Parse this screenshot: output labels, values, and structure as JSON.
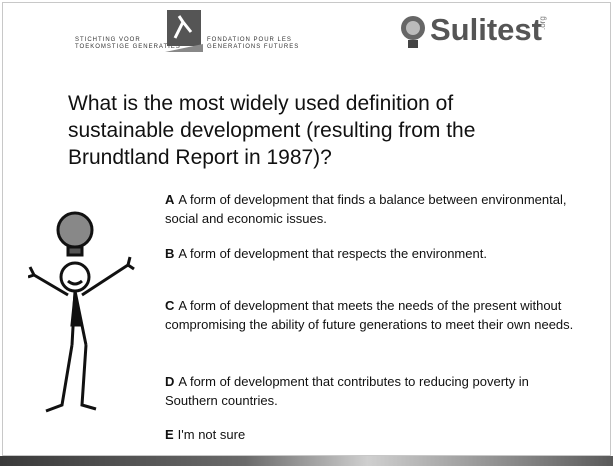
{
  "header": {
    "left_logo": {
      "nl_line1": "STICHTING VOOR",
      "nl_line2": "TOEKOMSTIGE GENERATIES",
      "fr_line1": "FONDATION POUR LES",
      "fr_line2": "GENERATIONS FUTURES"
    },
    "right_logo": {
      "name": "Sulitest",
      "suffix": ".org"
    }
  },
  "question": "What is the most widely used definition of sustainable development (resulting from the Brundtland Report in 1987)?",
  "options": [
    {
      "letter": "A",
      "text": "A form of development that finds a balance between environmental, social and economic issues."
    },
    {
      "letter": "B",
      "text": "A form of development that respects the environment."
    },
    {
      "letter": "C",
      "text": "A form of development that meets the needs of the present without compromising the ability of future generations to meet their own needs."
    },
    {
      "letter": "D",
      "text": "A form of development that contributes to reducing poverty in Southern countries."
    },
    {
      "letter": "E",
      "text": "I'm not sure"
    }
  ]
}
